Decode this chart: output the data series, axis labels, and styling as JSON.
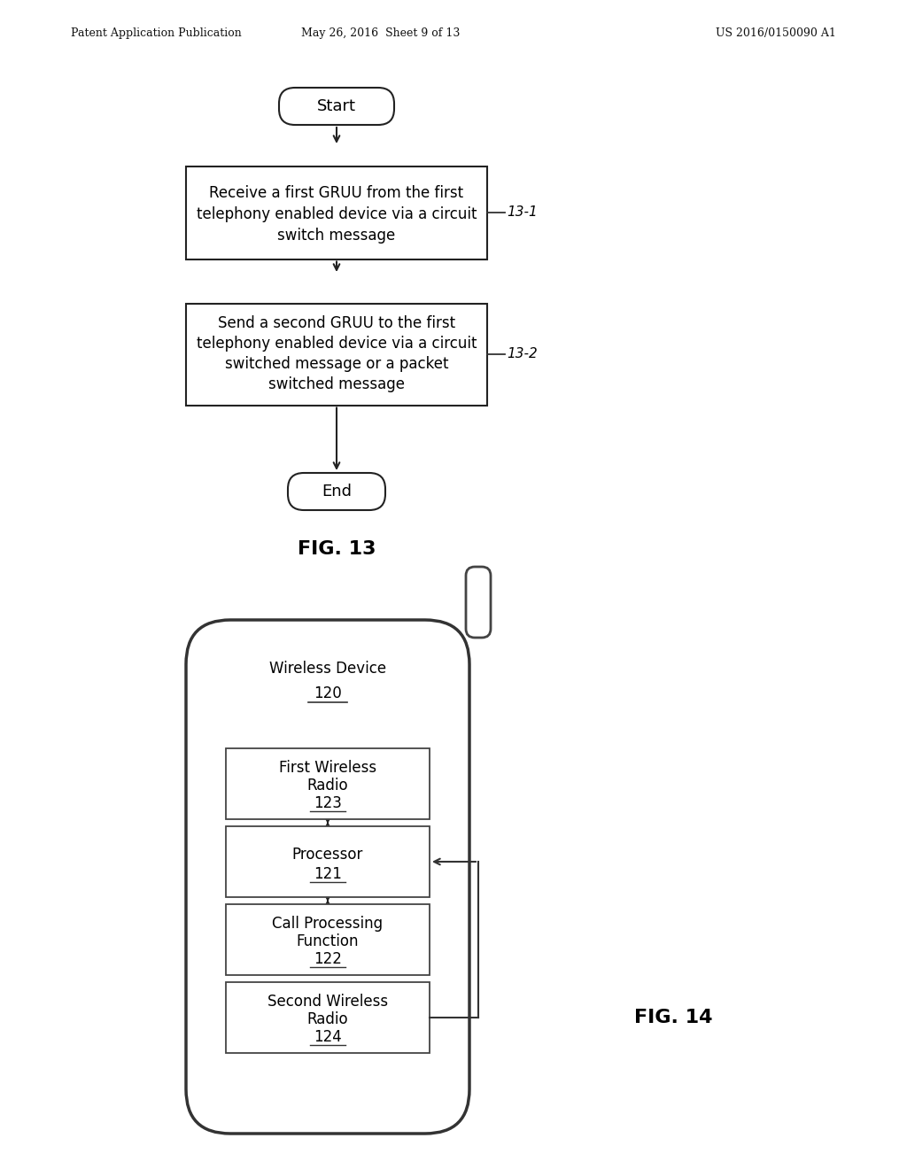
{
  "bg_color": "#ffffff",
  "header_left": "Patent Application Publication",
  "header_center": "May 26, 2016  Sheet 9 of 13",
  "header_right": "US 2016/0150090 A1",
  "fig13": {
    "title": "FIG. 13",
    "start_text": "Start",
    "box1_lines": [
      "Receive a first GRUU from the first",
      "telephony enabled device via a circuit",
      "switch message"
    ],
    "box2_lines": [
      "Send a second GRUU to the first",
      "telephony enabled device via a circuit",
      "switched message or a packet",
      "switched message"
    ],
    "end_text": "End",
    "label1": "13-1",
    "label2": "13-2"
  },
  "fig14": {
    "title": "FIG. 14",
    "device_label": "Wireless Device",
    "device_num": "120",
    "boxes": [
      {
        "lines": [
          "First Wireless",
          "Radio"
        ],
        "num": "123"
      },
      {
        "lines": [
          "Processor"
        ],
        "num": "121"
      },
      {
        "lines": [
          "Call Processing",
          "Function"
        ],
        "num": "122"
      },
      {
        "lines": [
          "Second Wireless",
          "Radio"
        ],
        "num": "124"
      }
    ]
  }
}
